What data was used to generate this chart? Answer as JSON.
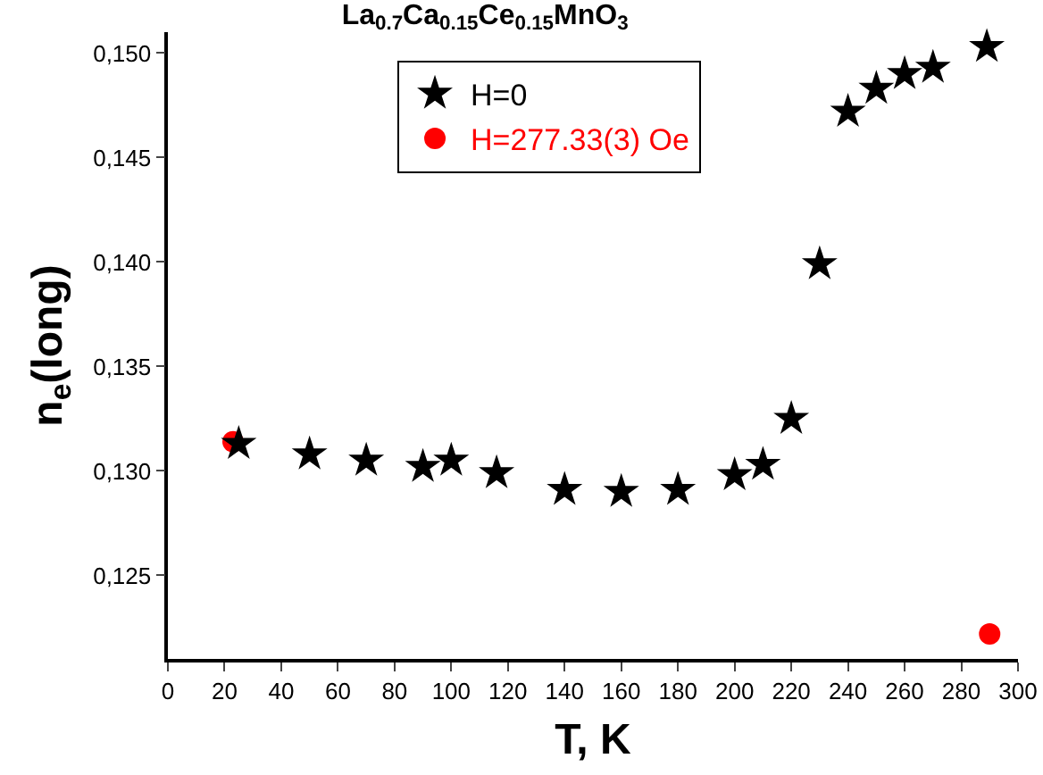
{
  "chart_data": {
    "type": "scatter",
    "title": "La$_{0.7}$Ca$_{0.15}$Ce$_{0.15}$MnO$_{3}$",
    "xlabel": "T, K",
    "ylabel": "n$_{e}$(long)",
    "xlim": [
      0,
      300
    ],
    "xticks": [
      0,
      20,
      40,
      60,
      80,
      100,
      120,
      140,
      160,
      180,
      200,
      220,
      240,
      260,
      280,
      300
    ],
    "ylim": [
      0.121,
      0.151
    ],
    "yticks": [
      {
        "value": 0.125,
        "label": "0,125"
      },
      {
        "value": 0.13,
        "label": "0,130"
      },
      {
        "value": 0.135,
        "label": "0,135"
      },
      {
        "value": 0.14,
        "label": "0,140"
      },
      {
        "value": 0.145,
        "label": "0,145"
      },
      {
        "value": 0.15,
        "label": "0,150"
      }
    ],
    "grid": false,
    "legend": "top center",
    "series": [
      {
        "name": "H=0",
        "color": "#000000",
        "marker": "star",
        "x": [
          25,
          50,
          70,
          90,
          100,
          116,
          140,
          160,
          180,
          200,
          210,
          220,
          230,
          240,
          250,
          260,
          270,
          289
        ],
        "values": [
          0.1313,
          0.1308,
          0.1305,
          0.1302,
          0.1305,
          0.1299,
          0.1291,
          0.129,
          0.1291,
          0.1298,
          0.1303,
          0.1325,
          0.1399,
          0.1472,
          0.1483,
          0.149,
          0.1493,
          0.1503
        ]
      },
      {
        "name": "H=277.33(3) Oe",
        "color": "#ff0000",
        "marker": "circle",
        "x": [
          23,
          290
        ],
        "values": [
          0.1314,
          0.1222
        ]
      }
    ]
  }
}
